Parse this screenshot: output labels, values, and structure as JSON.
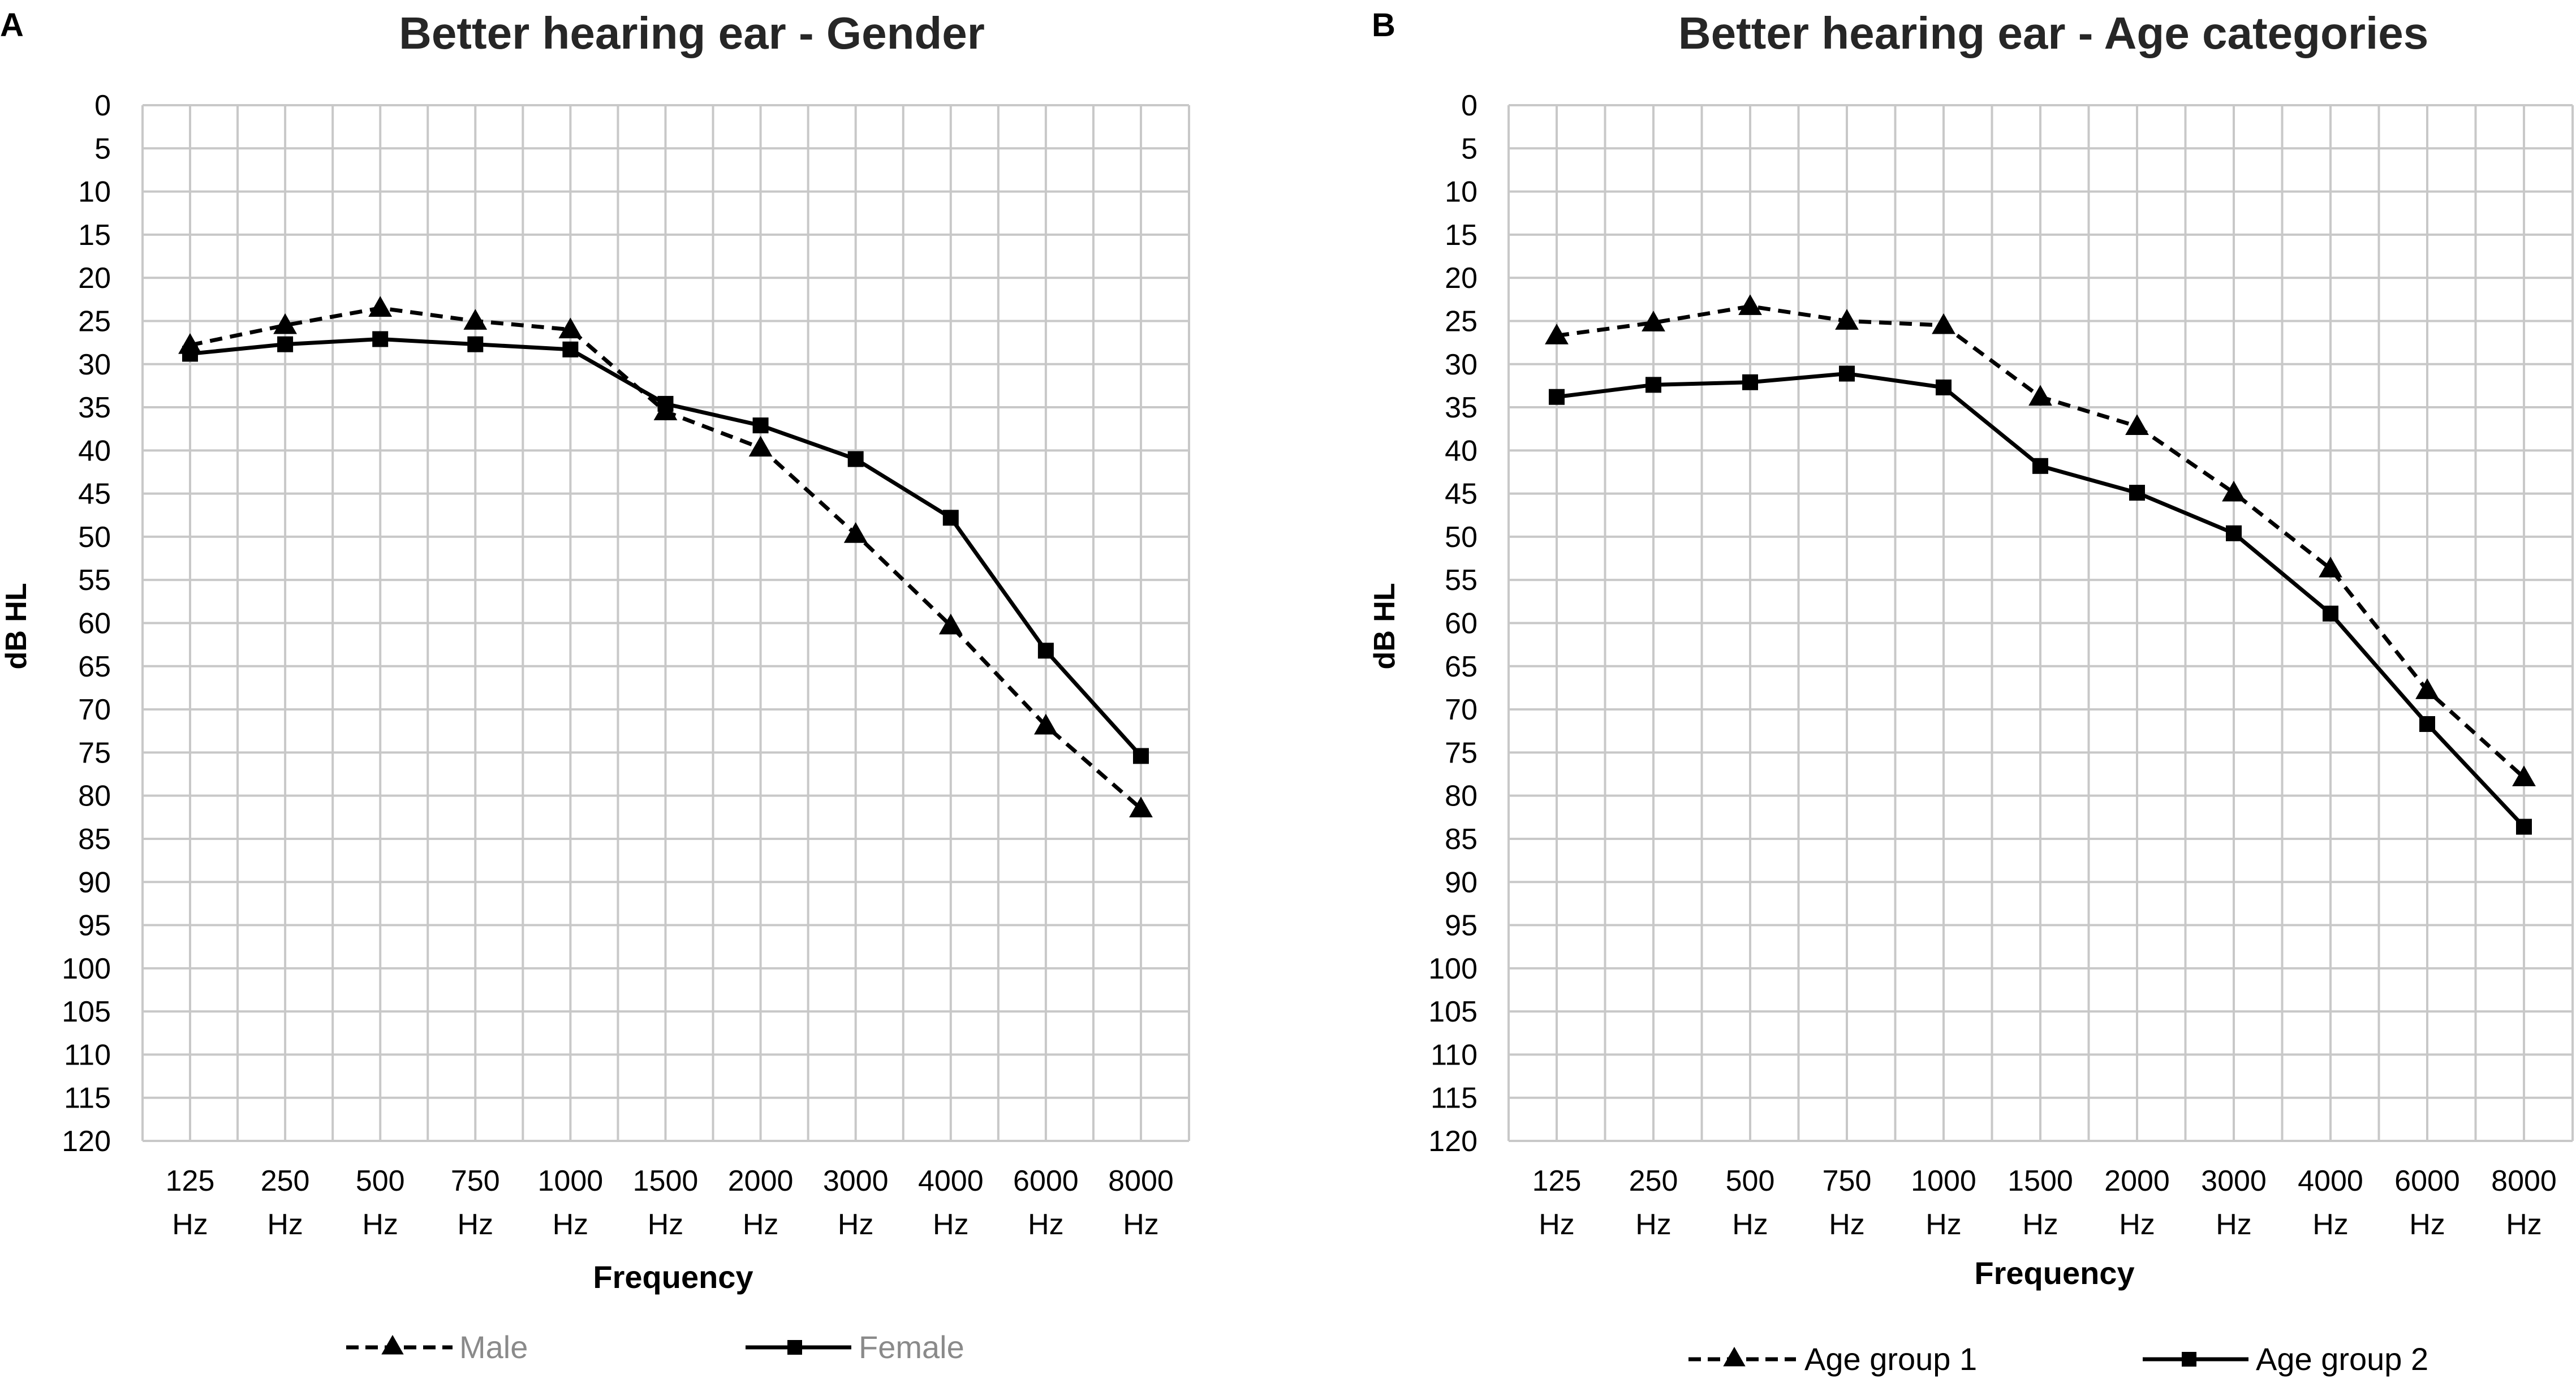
{
  "chart_data": [
    {
      "panel_label": "A",
      "type": "line",
      "title": "Better hearing ear - Gender",
      "xlabel": "Frequency",
      "ylabel": "dB HL",
      "ylim": [
        0,
        120
      ],
      "y_ticks": [
        "0",
        "5",
        "10",
        "15",
        "20",
        "25",
        "30",
        "35",
        "40",
        "45",
        "50",
        "55",
        "60",
        "65",
        "70",
        "75",
        "80",
        "85",
        "90",
        "95",
        "100",
        "105",
        "110",
        "115",
        "120"
      ],
      "categories": [
        {
          "value": "125",
          "unit": "Hz"
        },
        {
          "value": "250",
          "unit": "Hz"
        },
        {
          "value": "500",
          "unit": "Hz"
        },
        {
          "value": "750",
          "unit": "Hz"
        },
        {
          "value": "1000",
          "unit": "Hz"
        },
        {
          "value": "1500",
          "unit": "Hz"
        },
        {
          "value": "2000",
          "unit": "Hz"
        },
        {
          "value": "3000",
          "unit": "Hz"
        },
        {
          "value": "4000",
          "unit": "Hz"
        },
        {
          "value": "6000",
          "unit": "Hz"
        },
        {
          "value": "8000",
          "unit": "Hz"
        }
      ],
      "series": [
        {
          "name": "Male",
          "style": "dashed",
          "marker": "triangle",
          "color": "#000000",
          "legend_text_color": "#8a8a8a",
          "values": [
            27.8,
            25.5,
            23.5,
            25.0,
            26.0,
            35.5,
            39.7,
            49.7,
            60.3,
            71.9,
            81.5
          ]
        },
        {
          "name": "Female",
          "style": "solid",
          "marker": "square",
          "color": "#000000",
          "legend_text_color": "#8a8a8a",
          "values": [
            28.8,
            27.7,
            27.1,
            27.7,
            28.3,
            34.6,
            37.1,
            41.0,
            47.8,
            63.2,
            75.4
          ]
        }
      ]
    },
    {
      "panel_label": "B",
      "type": "line",
      "title": "Better hearing ear - Age categories",
      "xlabel": "Frequency",
      "ylabel": "dB HL",
      "ylim": [
        0,
        120
      ],
      "y_ticks": [
        "0",
        "5",
        "10",
        "15",
        "20",
        "25",
        "30",
        "35",
        "40",
        "45",
        "50",
        "55",
        "60",
        "65",
        "70",
        "75",
        "80",
        "85",
        "90",
        "95",
        "100",
        "105",
        "110",
        "115",
        "120"
      ],
      "categories": [
        {
          "value": "125",
          "unit": "Hz"
        },
        {
          "value": "250",
          "unit": "Hz"
        },
        {
          "value": "500",
          "unit": "Hz"
        },
        {
          "value": "750",
          "unit": "Hz"
        },
        {
          "value": "1000",
          "unit": "Hz"
        },
        {
          "value": "1500",
          "unit": "Hz"
        },
        {
          "value": "2000",
          "unit": "Hz"
        },
        {
          "value": "3000",
          "unit": "Hz"
        },
        {
          "value": "4000",
          "unit": "Hz"
        },
        {
          "value": "6000",
          "unit": "Hz"
        },
        {
          "value": "8000",
          "unit": "Hz"
        }
      ],
      "series": [
        {
          "name": "Age group 1",
          "style": "dashed",
          "marker": "triangle",
          "color": "#000000",
          "legend_text_color": "#000000",
          "values": [
            26.7,
            25.2,
            23.3,
            25.0,
            25.5,
            33.8,
            37.2,
            44.9,
            53.7,
            67.8,
            77.9
          ]
        },
        {
          "name": "Age group 2",
          "style": "solid",
          "marker": "square",
          "color": "#000000",
          "legend_text_color": "#000000",
          "values": [
            33.8,
            32.4,
            32.1,
            31.1,
            32.7,
            41.8,
            44.9,
            49.6,
            58.9,
            71.7,
            83.6
          ]
        }
      ]
    }
  ],
  "colors": {
    "grid": "#c8c8c8",
    "axis_text": "#000000",
    "line": "#000000"
  }
}
